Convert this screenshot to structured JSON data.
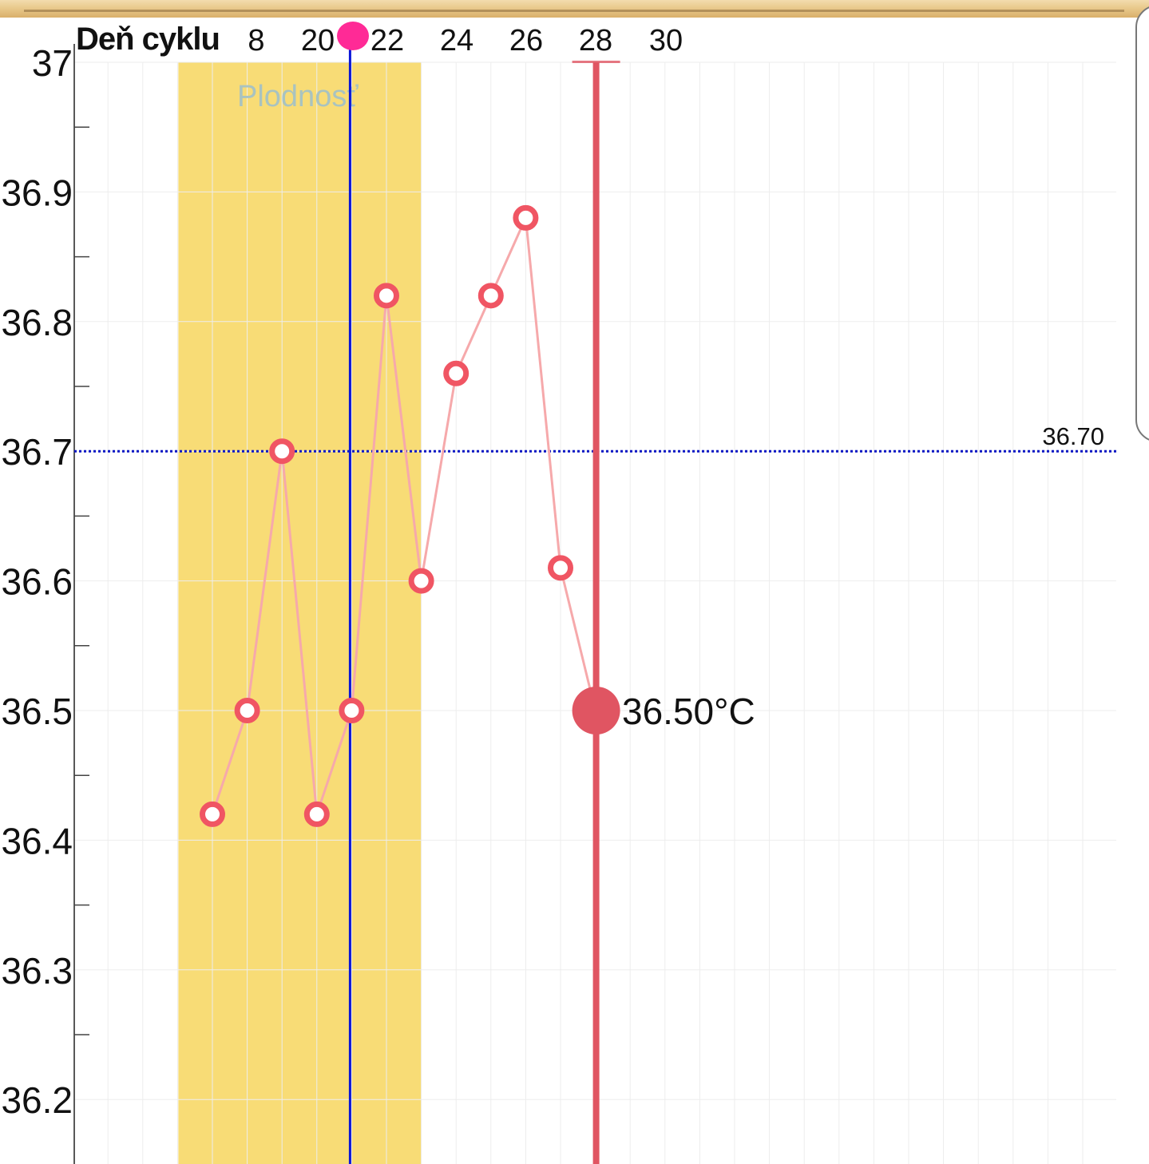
{
  "header": {
    "x_axis_label": "Deň cyklu",
    "x_ticks": [
      "8",
      "20",
      "22",
      "24",
      "26",
      "28",
      "30"
    ]
  },
  "chart_data": {
    "type": "line",
    "xlabel": "Deň cyklu",
    "ylabel": "",
    "ylim": [
      36.15,
      37.0
    ],
    "y_ticks": [
      "37",
      "36.9",
      "36.8",
      "36.7",
      "36.6",
      "36.5",
      "36.4",
      "36.3",
      "36.2"
    ],
    "x": [
      17,
      18,
      19,
      20,
      21,
      22,
      23,
      24,
      25,
      26,
      27,
      28
    ],
    "values": [
      36.42,
      36.5,
      36.7,
      36.42,
      36.5,
      36.82,
      36.6,
      36.76,
      36.82,
      36.88,
      36.61,
      36.5
    ],
    "grid": true,
    "fertile_window": {
      "label": "Plodnosť",
      "from_day": 16,
      "to_day": 23
    },
    "ovulation_day": 21,
    "current": {
      "day": 28,
      "value": 36.5,
      "label": "36.50°C"
    },
    "coverline": {
      "value": 36.7,
      "label": "36.70"
    },
    "colors": {
      "fertile": "#f8dc76",
      "fertile_label": "#a9c3c0",
      "line": "#f6a9ab",
      "marker": "#f05563",
      "current": "#e05562",
      "ovulation": "#0a16d8",
      "coverline": "#0a16c4",
      "grid": "#ededed",
      "axis": "#222222",
      "pink_dot": "#ff2a96"
    }
  }
}
